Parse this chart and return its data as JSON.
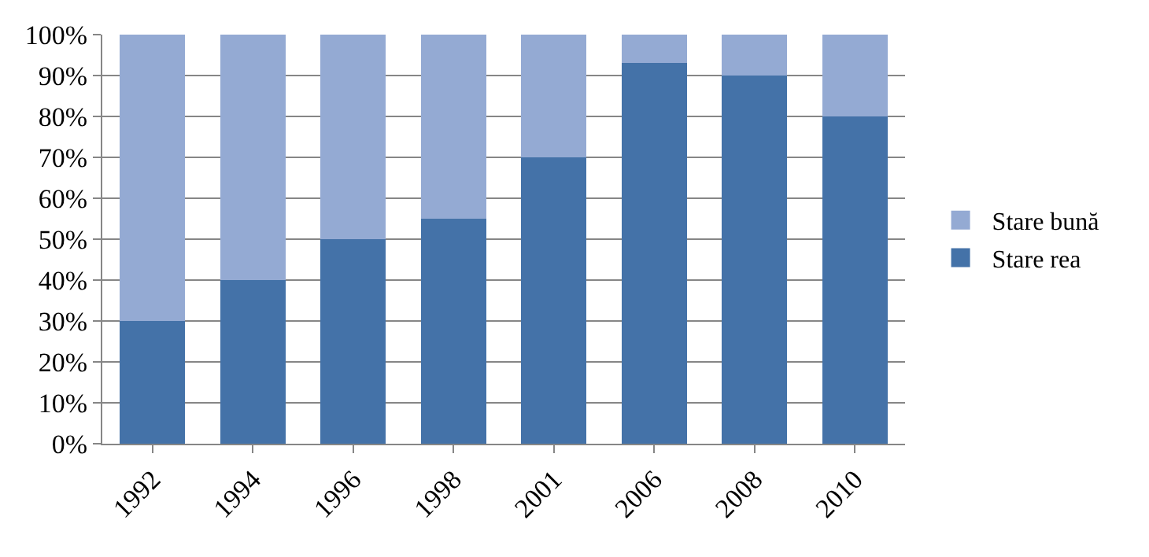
{
  "chart_data": {
    "type": "bar",
    "stacked": true,
    "categories": [
      "1992",
      "1994",
      "1996",
      "1998",
      "2001",
      "2006",
      "2008",
      "2010"
    ],
    "series": [
      {
        "name": "Stare rea",
        "color": "#4472a8",
        "values": [
          30,
          40,
          50,
          55,
          70,
          93,
          90,
          80
        ]
      },
      {
        "name": "Stare bună",
        "color": "#94aad3",
        "values": [
          70,
          60,
          50,
          45,
          30,
          7,
          10,
          20
        ]
      }
    ],
    "ylim": [
      0,
      100
    ],
    "yticks": [
      {
        "value": 0,
        "label": "0%"
      },
      {
        "value": 10,
        "label": "10%"
      },
      {
        "value": 20,
        "label": "20%"
      },
      {
        "value": 30,
        "label": "30%"
      },
      {
        "value": 40,
        "label": "40%"
      },
      {
        "value": 50,
        "label": "50%"
      },
      {
        "value": 60,
        "label": "60%"
      },
      {
        "value": 70,
        "label": "70%"
      },
      {
        "value": 80,
        "label": "80%"
      },
      {
        "value": 90,
        "label": "90%"
      },
      {
        "value": 100,
        "label": "100%"
      }
    ],
    "grid": "y",
    "legend": "right"
  }
}
